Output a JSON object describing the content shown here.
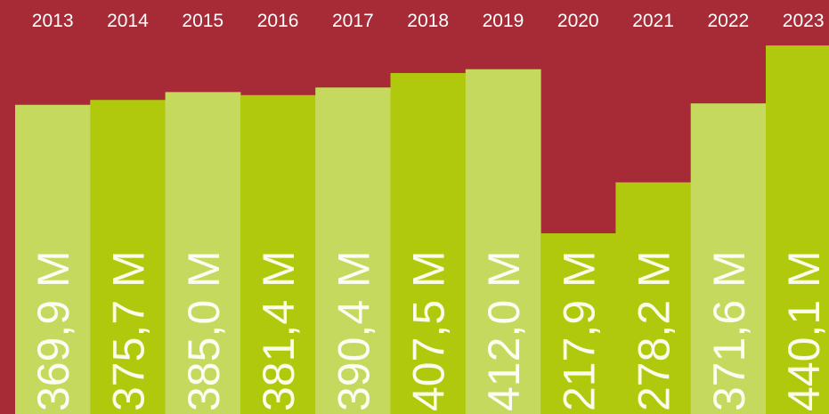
{
  "chart_data": {
    "type": "bar",
    "categories": [
      "2013",
      "2014",
      "2015",
      "2016",
      "2017",
      "2018",
      "2019",
      "2020",
      "2021",
      "2022",
      "2023"
    ],
    "values": [
      369.9,
      375.7,
      385.0,
      381.4,
      390.4,
      407.5,
      412.0,
      217.9,
      278.2,
      371.6,
      440.1
    ],
    "value_labels": [
      "369,9 M",
      "375,7 M",
      "385,0 M",
      "381,4 M",
      "390,4 M",
      "407,5 M",
      "412,0 M",
      "217,9 M",
      "278,2 M",
      "371,6 M",
      "440,1 M"
    ],
    "colors": [
      "#c6d95f",
      "#b1c90c",
      "#c6d95f",
      "#b1c90c",
      "#c6d95f",
      "#b1c90c",
      "#c6d95f",
      "#b1c90c",
      "#b1c90c",
      "#c6d95f",
      "#b1c90c"
    ]
  }
}
